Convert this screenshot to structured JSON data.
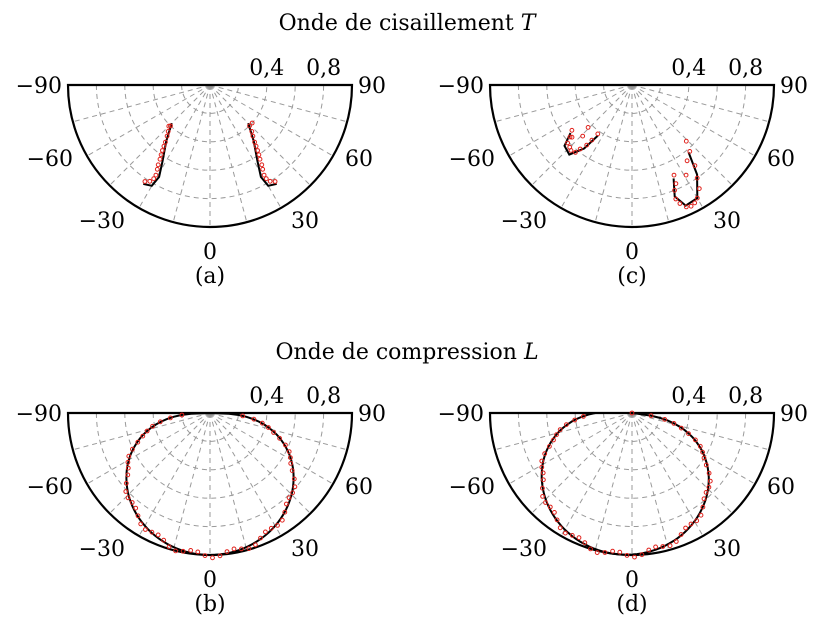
{
  "titles": {
    "top": "Onde de cisaillement",
    "top_var": "T",
    "bottom": "Onde de compression",
    "bottom_var": "L"
  },
  "chart_data": [
    {
      "type": "polar",
      "panel": "(a)",
      "angle_ticks": [
        "−90",
        "−60",
        "−30",
        "0",
        "30",
        "60",
        "90"
      ],
      "radius_ticks": [
        "0,4",
        "0,8"
      ],
      "rlim": [
        0,
        1.0
      ],
      "theory": [
        [
          [
            -45,
            0.38
          ],
          [
            -38,
            0.5
          ],
          [
            -32,
            0.63
          ],
          [
            -29,
            0.74
          ],
          [
            -30,
            0.82
          ],
          [
            -34,
            0.84
          ]
        ],
        [
          [
            45,
            0.38
          ],
          [
            38,
            0.5
          ],
          [
            32,
            0.63
          ],
          [
            29,
            0.74
          ],
          [
            30,
            0.82
          ],
          [
            34,
            0.84
          ]
        ]
      ],
      "measured": [
        [
          -44,
          0.4
        ],
        [
          -42,
          0.44
        ],
        [
          -40,
          0.47
        ],
        [
          -38,
          0.51
        ],
        [
          -37,
          0.54
        ],
        [
          -36,
          0.57
        ],
        [
          -35,
          0.6
        ],
        [
          -34,
          0.63
        ],
        [
          -33,
          0.67
        ],
        [
          -32,
          0.7
        ],
        [
          -31,
          0.74
        ],
        [
          -31,
          0.77
        ],
        [
          -32,
          0.8
        ],
        [
          -34,
          0.82
        ],
        [
          -45,
          0.41
        ],
        [
          44,
          0.4
        ],
        [
          42,
          0.44
        ],
        [
          40,
          0.47
        ],
        [
          38,
          0.51
        ],
        [
          37,
          0.54
        ],
        [
          36,
          0.57
        ],
        [
          35,
          0.6
        ],
        [
          34,
          0.63
        ],
        [
          33,
          0.67
        ],
        [
          32,
          0.7
        ],
        [
          31,
          0.74
        ],
        [
          31,
          0.77
        ],
        [
          32,
          0.8
        ],
        [
          34,
          0.82
        ],
        [
          48,
          0.4
        ]
      ]
    },
    {
      "type": "polar",
      "panel": "(c)",
      "angle_ticks": [
        "−90",
        "−60",
        "−30",
        "0",
        "30",
        "60",
        "90"
      ],
      "radius_ticks": [
        "0,4",
        "0,8"
      ],
      "rlim": [
        0,
        1.0
      ],
      "theory": [
        [
          [
            -34,
            0.43
          ],
          [
            -37,
            0.56
          ],
          [
            -42,
            0.66
          ],
          [
            -48,
            0.64
          ],
          [
            -52,
            0.55
          ]
        ],
        [
          [
            24,
            0.72
          ],
          [
            21,
            0.84
          ],
          [
            24,
            0.93
          ],
          [
            30,
            0.92
          ],
          [
            36,
            0.78
          ],
          [
            40,
            0.62
          ]
        ]
      ],
      "measured": [
        [
          -35,
          0.42
        ],
        [
          -36,
          0.48
        ],
        [
          -37,
          0.53
        ],
        [
          -39,
          0.58
        ],
        [
          -40,
          0.62
        ],
        [
          -43,
          0.63
        ],
        [
          -45,
          0.62
        ],
        [
          -48,
          0.61
        ],
        [
          -50,
          0.57
        ],
        [
          -53,
          0.53
        ],
        [
          -46,
          0.43
        ],
        [
          -44,
          0.5
        ],
        [
          -49,
          0.56
        ],
        [
          25,
          0.7
        ],
        [
          24,
          0.76
        ],
        [
          22,
          0.8
        ],
        [
          21,
          0.86
        ],
        [
          22,
          0.9
        ],
        [
          24,
          0.94
        ],
        [
          26,
          0.95
        ],
        [
          28,
          0.94
        ],
        [
          30,
          0.92
        ],
        [
          33,
          0.87
        ],
        [
          35,
          0.8
        ],
        [
          38,
          0.72
        ],
        [
          41,
          0.62
        ],
        [
          44,
          0.55
        ],
        [
          31,
          0.74
        ],
        [
          36,
          0.66
        ]
      ]
    },
    {
      "type": "polar",
      "panel": "(b)",
      "angle_ticks": [
        "−90",
        "−60",
        "−30",
        "0",
        "30",
        "60",
        "90"
      ],
      "radius_ticks": [
        "0,4",
        "0,8"
      ],
      "rlim": [
        0,
        1.0
      ],
      "shape": "lobe",
      "lobe": {
        "peak": 1.0,
        "exponent": 0.6,
        "offset_deg": 0
      }
    },
    {
      "type": "polar",
      "panel": "(d)",
      "angle_ticks": [
        "−90",
        "−60",
        "−30",
        "0",
        "30",
        "60",
        "90"
      ],
      "radius_ticks": [
        "0,4",
        "0,8"
      ],
      "rlim": [
        0,
        1.0
      ],
      "shape": "lobe",
      "lobe": {
        "peak": 1.0,
        "exponent": 0.6,
        "offset_deg": -6
      }
    }
  ]
}
